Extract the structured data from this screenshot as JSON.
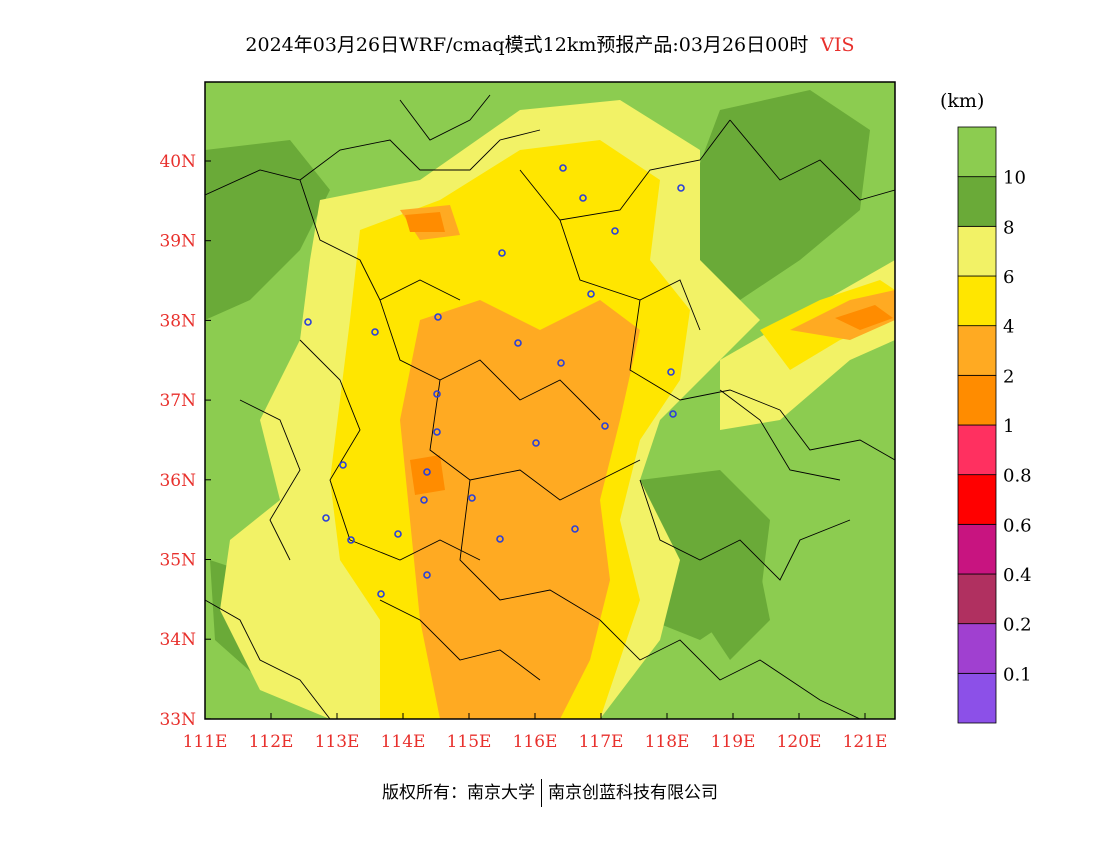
{
  "title": {
    "main": "2024年03月26日WRF/cmaq模式12km预报产品:03月26日00时",
    "variable": "VIS"
  },
  "colorbar": {
    "unit": "(km)",
    "bands": [
      {
        "color": "#8c50e8",
        "label": "0.1"
      },
      {
        "color": "#a040d0",
        "label": "0.2"
      },
      {
        "color": "#b03060",
        "label": "0.4"
      },
      {
        "color": "#c81480",
        "label": "0.6"
      },
      {
        "color": "#ff0000",
        "label": "0.8"
      },
      {
        "color": "#ff3060",
        "label": "1"
      },
      {
        "color": "#ff8c00",
        "label": "2"
      },
      {
        "color": "#ffaa22",
        "label": "4"
      },
      {
        "color": "#ffe600",
        "label": "6"
      },
      {
        "color": "#f2f266",
        "label": "8"
      },
      {
        "color": "#6aaa38",
        "label": "10"
      },
      {
        "color": "#8ccc50",
        "label": ""
      }
    ]
  },
  "axes": {
    "x_ticks": [
      "111E",
      "112E",
      "113E",
      "114E",
      "115E",
      "116E",
      "117E",
      "118E",
      "119E",
      "120E",
      "121E"
    ],
    "y_ticks": [
      "40N",
      "39N",
      "38N",
      "37N",
      "36N",
      "35N",
      "34N",
      "33N"
    ]
  },
  "stations_count_note": "",
  "footer": {
    "left": "版权所有：南京大学",
    "right": "南京创蓝科技有限公司"
  }
}
